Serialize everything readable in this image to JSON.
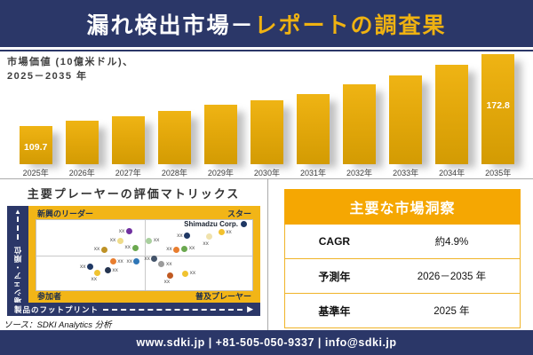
{
  "banner": {
    "title_white": "漏れ検出市場－",
    "title_gold": "レポートの調査果"
  },
  "chart_label": {
    "line1": "市場価値 (10億米ドル)、",
    "line2": "2025－2035 年"
  },
  "chart_data": [
    {
      "type": "bar",
      "title": "市場価値 (10億米ドル)、2025－2035 年",
      "ylabel": "市場価値 (10億米ドル)",
      "categories": [
        "2025年",
        "2026年",
        "2027年",
        "2028年",
        "2029年",
        "2030年",
        "2031年",
        "2032年",
        "2033年",
        "2034年",
        "2035年"
      ],
      "values": [
        109.7,
        114.3,
        118.0,
        122.8,
        128.3,
        132.4,
        138.1,
        146.5,
        154.6,
        163.4,
        172.8
      ],
      "bar_labels": [
        "109.7",
        "",
        "",
        "",
        "",
        "",
        "",
        "",
        "",
        "",
        "172.8"
      ],
      "bar_color_top": "#EFB414",
      "bar_color_bottom": "#D39B03",
      "grid": false,
      "legend": false
    },
    {
      "type": "scatter",
      "title": "主要プレーヤーの評価マトリックス",
      "xlabel": "製品のフットプリント",
      "ylabel": "市場シェア・順位",
      "quadrants": {
        "top_left": "新興のリーダー",
        "top_right": "スター",
        "bottom_left": "参加者",
        "bottom_right": "普及プレーヤー"
      },
      "highlighted_company": "Shimadzu Corp.",
      "points": [
        {
          "x": 42.9,
          "y": 16.0,
          "color": "#7030A0",
          "label": "xx",
          "label_pos": "left"
        },
        {
          "x": 38.8,
          "y": 29.6,
          "color": "#EFDC8A",
          "label": "xx",
          "label_pos": "left"
        },
        {
          "x": 31.4,
          "y": 42.0,
          "color": "#BE9226",
          "label": "xx",
          "label_pos": "left"
        },
        {
          "x": 45.7,
          "y": 39.5,
          "color": "#6BA84F",
          "label": "xx",
          "label_pos": "left"
        },
        {
          "x": 52.2,
          "y": 29.6,
          "color": "#A9CF9E",
          "label": "xx",
          "label_pos": "right"
        },
        {
          "x": 69.8,
          "y": 22.2,
          "color": "#1F3864",
          "label": "xx",
          "label_pos": "left"
        },
        {
          "x": 95.9,
          "y": 6.2,
          "color": "#1F3864",
          "label": "Shimadzu Corp.",
          "label_pos": "company"
        },
        {
          "x": 85.7,
          "y": 17.3,
          "color": "#F2C12E",
          "label": "xx",
          "label_pos": "right"
        },
        {
          "x": 80.0,
          "y": 23.5,
          "color": "#F0E2AC",
          "label": "xx",
          "label_pos": "below"
        },
        {
          "x": 64.9,
          "y": 42.0,
          "color": "#E87D2E",
          "label": "xx",
          "label_pos": "left"
        },
        {
          "x": 68.6,
          "y": 40.7,
          "color": "#6BA84F",
          "label": "xx",
          "label_pos": "right"
        },
        {
          "x": 24.9,
          "y": 66.7,
          "color": "#1F3864",
          "label": "xx",
          "label_pos": "left"
        },
        {
          "x": 35.5,
          "y": 59.3,
          "color": "#E87D2E",
          "label": "xx",
          "label_pos": "right"
        },
        {
          "x": 46.5,
          "y": 59.3,
          "color": "#2E75B6",
          "label": "xx",
          "label_pos": "left"
        },
        {
          "x": 28.2,
          "y": 75.3,
          "color": "#F0C330",
          "label": "xx",
          "label_pos": "below"
        },
        {
          "x": 33.1,
          "y": 71.6,
          "color": "#253450",
          "label": "xx",
          "label_pos": "right"
        },
        {
          "x": 54.7,
          "y": 55.6,
          "color": "#44546A",
          "label": "xx",
          "label_pos": "left"
        },
        {
          "x": 58.0,
          "y": 63.0,
          "color": "#9B9B9B",
          "label": "xx",
          "label_pos": "right"
        },
        {
          "x": 62.0,
          "y": 79.0,
          "color": "#C05A22",
          "label": "xx",
          "label_pos": "below"
        },
        {
          "x": 69.0,
          "y": 76.5,
          "color": "#F0C330",
          "label": "xx",
          "label_pos": "right"
        }
      ]
    }
  ],
  "insights": {
    "title": "主要な市場洞察",
    "rows": [
      {
        "label": "CAGR",
        "value": "約4.9%"
      },
      {
        "label": "予測年",
        "value": "2026－2035 年"
      },
      {
        "label": "基準年",
        "value": "2025 年"
      }
    ]
  },
  "source": "ソース：SDKI Analytics 分析",
  "footer": "www.sdki.jp | +81-505-050-9337 | info@sdki.jp",
  "colors": {
    "navy": "#2B3768",
    "banner_gold_text": "#EFB211",
    "bar_gold": "#E3A80B",
    "matrix_gold": "#F2B517",
    "table_header_gold": "#F5A702",
    "table_border_gold": "#F0B428"
  }
}
